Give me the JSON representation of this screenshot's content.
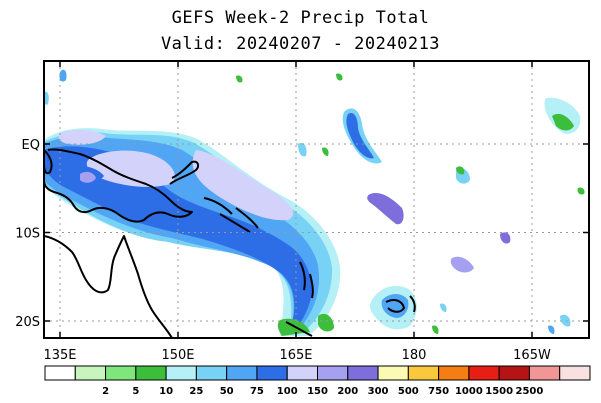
{
  "title": "GEFS Week-2 Precip Total",
  "subtitle": "Valid: 20240207 - 20240213",
  "map": {
    "lon_ticks": [
      {
        "lon": 135,
        "label": "135E"
      },
      {
        "lon": 150,
        "label": "150E"
      },
      {
        "lon": 165,
        "label": "165E"
      },
      {
        "lon": 180,
        "label": "180"
      },
      {
        "lon": 195,
        "label": "165W"
      }
    ],
    "lat_ticks": [
      {
        "lat": 0,
        "label": "EQ"
      },
      {
        "lat": -10,
        "label": "10S"
      },
      {
        "lat": -20,
        "label": "20S"
      }
    ],
    "grid": "dotted"
  },
  "colorbar": {
    "colors": [
      "#ffffff",
      "#c8f5be",
      "#7ee67a",
      "#3cbe3c",
      "#b4f0f5",
      "#78d2f5",
      "#50a5f5",
      "#2d6ee6",
      "#d2d2fa",
      "#a5a0f0",
      "#7d6edc",
      "#fafab4",
      "#fac83c",
      "#f57d14",
      "#e61e14",
      "#b41414",
      "#f09696",
      "#fae1e1"
    ],
    "labels": [
      "2",
      "5",
      "10",
      "25",
      "50",
      "75",
      "100",
      "150",
      "200",
      "300",
      "500",
      "750",
      "1000",
      "1500",
      "2500"
    ]
  }
}
